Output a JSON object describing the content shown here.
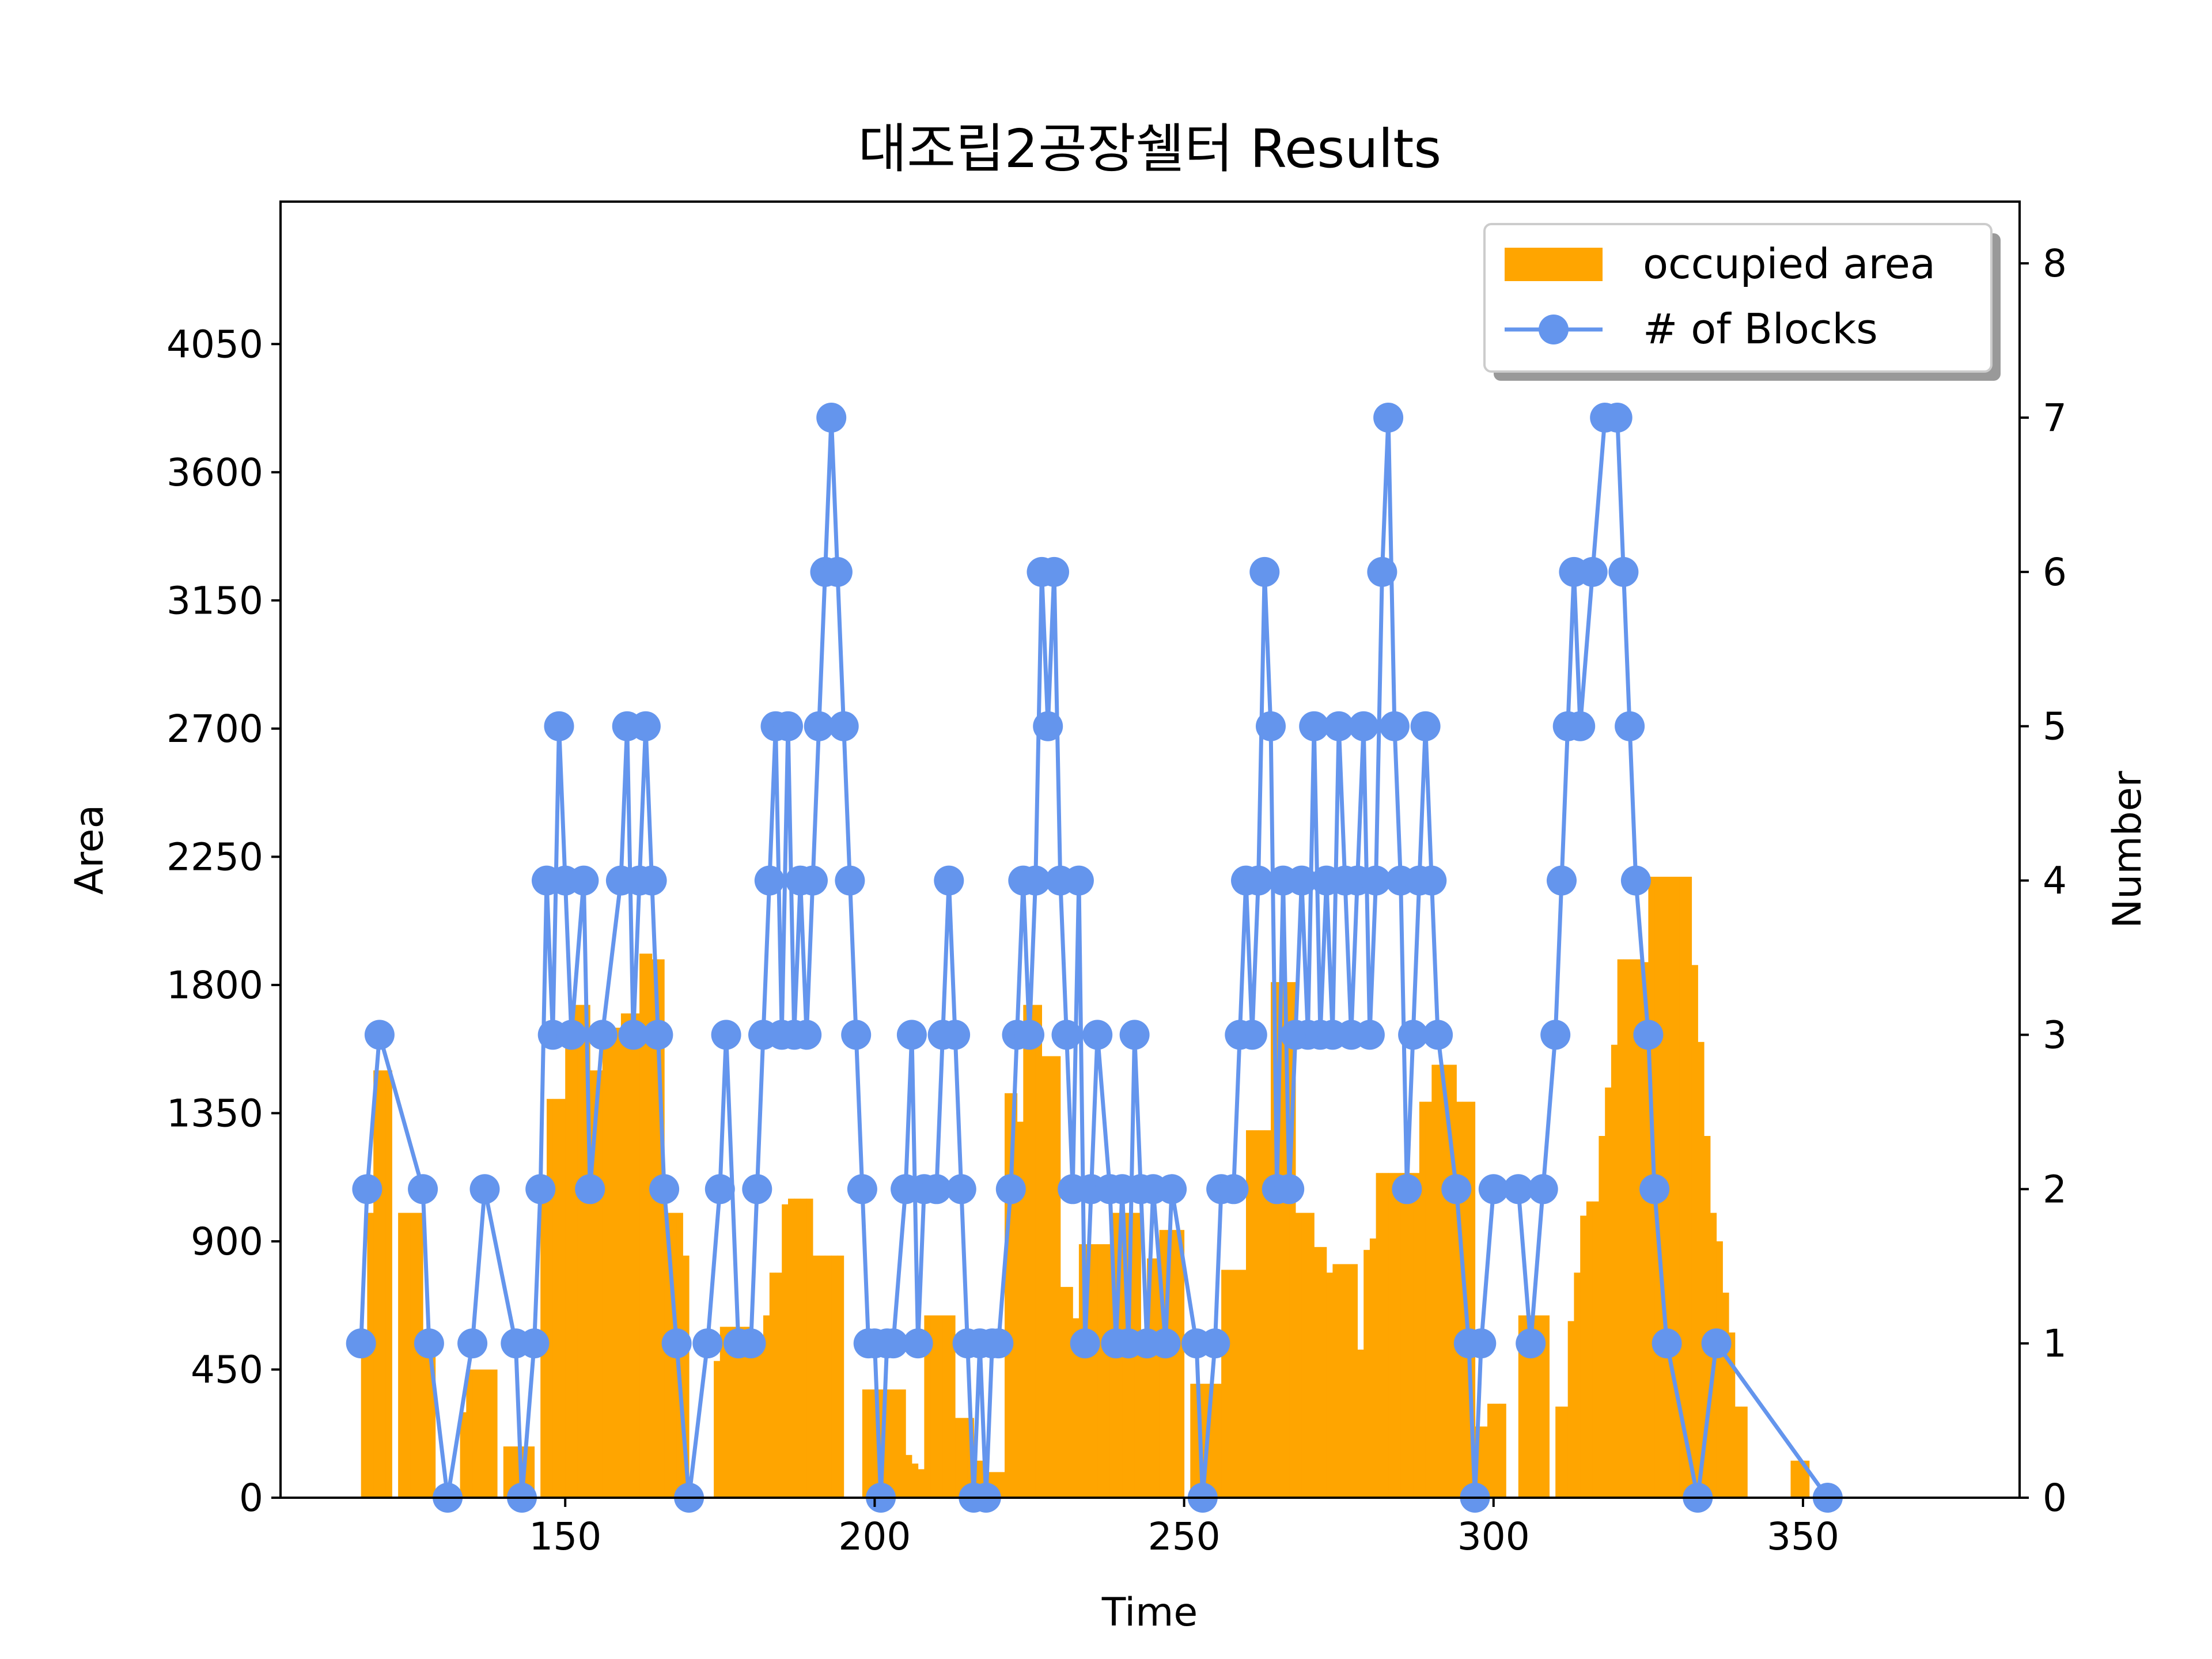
{
  "chart_data": {
    "type": "bar+line",
    "title": "대조립2공장쉘터 Results",
    "xlabel": "Time",
    "ylabel_left": "Area",
    "ylabel_right": "Number",
    "xlim": [
      104,
      385
    ],
    "ylim_left": [
      0,
      4550
    ],
    "ylim_right": [
      0,
      8.4
    ],
    "x_ticks": [
      150,
      200,
      250,
      300,
      350
    ],
    "y_left_ticks": [
      0,
      450,
      900,
      1350,
      1800,
      2250,
      2700,
      3150,
      3600,
      4050
    ],
    "y_right_ticks": [
      0,
      1,
      2,
      3,
      4,
      5,
      6,
      7,
      8
    ],
    "legend_position": "upper right",
    "colors": {
      "bar": "#FFA500",
      "line": "#6495ED"
    },
    "bar_series": {
      "name": "occupied area",
      "bars": [
        [
          117,
          500
        ],
        [
          118,
          1000
        ],
        [
          119,
          1500
        ],
        [
          120,
          1500
        ],
        [
          121,
          1500
        ],
        [
          123,
          1000
        ],
        [
          124,
          1000
        ],
        [
          125,
          1000
        ],
        [
          126,
          1000
        ],
        [
          127,
          500
        ],
        [
          128,
          500
        ],
        [
          133,
          300
        ],
        [
          134,
          450
        ],
        [
          135,
          450
        ],
        [
          136,
          450
        ],
        [
          137,
          450
        ],
        [
          138,
          450
        ],
        [
          140,
          180
        ],
        [
          141,
          180
        ],
        [
          142,
          180
        ],
        [
          143,
          180
        ],
        [
          144,
          180
        ],
        [
          146,
          1050
        ],
        [
          147,
          1400
        ],
        [
          148,
          1400
        ],
        [
          149,
          1400
        ],
        [
          150,
          1650
        ],
        [
          151,
          1730
        ],
        [
          152,
          1730
        ],
        [
          153,
          1730
        ],
        [
          154,
          1500
        ],
        [
          155,
          1500
        ],
        [
          156,
          1650
        ],
        [
          157,
          1650
        ],
        [
          158,
          1650
        ],
        [
          159,
          1700
        ],
        [
          160,
          1700
        ],
        [
          161,
          1700
        ],
        [
          162,
          1910
        ],
        [
          163,
          1910
        ],
        [
          164,
          1890
        ],
        [
          165,
          1890
        ],
        [
          166,
          1000
        ],
        [
          167,
          1000
        ],
        [
          168,
          1000
        ],
        [
          169,
          850
        ],
        [
          174,
          480
        ],
        [
          175,
          600
        ],
        [
          176,
          600
        ],
        [
          177,
          600
        ],
        [
          178,
          600
        ],
        [
          179,
          600
        ],
        [
          180,
          520
        ],
        [
          181,
          520
        ],
        [
          182,
          640
        ],
        [
          183,
          790
        ],
        [
          184,
          790
        ],
        [
          185,
          1030
        ],
        [
          186,
          1050
        ],
        [
          187,
          1050
        ],
        [
          188,
          1050
        ],
        [
          189,
          1050
        ],
        [
          190,
          850
        ],
        [
          191,
          850
        ],
        [
          192,
          850
        ],
        [
          193,
          850
        ],
        [
          194,
          850
        ],
        [
          198,
          380
        ],
        [
          199,
          380
        ],
        [
          200,
          380
        ],
        [
          201,
          380
        ],
        [
          202,
          380
        ],
        [
          203,
          380
        ],
        [
          204,
          380
        ],
        [
          205,
          150
        ],
        [
          206,
          120
        ],
        [
          207,
          100
        ],
        [
          208,
          640
        ],
        [
          209,
          640
        ],
        [
          210,
          640
        ],
        [
          211,
          640
        ],
        [
          212,
          640
        ],
        [
          213,
          280
        ],
        [
          214,
          280
        ],
        [
          215,
          280
        ],
        [
          216,
          130
        ],
        [
          217,
          130
        ],
        [
          218,
          90
        ],
        [
          219,
          90
        ],
        [
          220,
          90
        ],
        [
          221,
          1420
        ],
        [
          222,
          1420
        ],
        [
          223,
          1320
        ],
        [
          224,
          1730
        ],
        [
          225,
          1730
        ],
        [
          226,
          1730
        ],
        [
          227,
          1550
        ],
        [
          228,
          1550
        ],
        [
          229,
          1550
        ],
        [
          230,
          740
        ],
        [
          231,
          740
        ],
        [
          232,
          630
        ],
        [
          233,
          890
        ],
        [
          234,
          890
        ],
        [
          235,
          890
        ],
        [
          236,
          890
        ],
        [
          237,
          890
        ],
        [
          238,
          1000
        ],
        [
          239,
          1000
        ],
        [
          240,
          1000
        ],
        [
          241,
          1000
        ],
        [
          242,
          1000
        ],
        [
          243,
          590
        ],
        [
          244,
          840
        ],
        [
          245,
          840
        ],
        [
          246,
          940
        ],
        [
          247,
          940
        ],
        [
          248,
          940
        ],
        [
          249,
          940
        ],
        [
          251,
          400
        ],
        [
          252,
          400
        ],
        [
          253,
          400
        ],
        [
          254,
          400
        ],
        [
          255,
          400
        ],
        [
          256,
          800
        ],
        [
          257,
          800
        ],
        [
          258,
          800
        ],
        [
          259,
          800
        ],
        [
          260,
          1290
        ],
        [
          261,
          1290
        ],
        [
          262,
          1290
        ],
        [
          263,
          1290
        ],
        [
          264,
          1810
        ],
        [
          265,
          1810
        ],
        [
          266,
          1810
        ],
        [
          267,
          1810
        ],
        [
          268,
          1000
        ],
        [
          269,
          1000
        ],
        [
          270,
          1000
        ],
        [
          271,
          880
        ],
        [
          272,
          880
        ],
        [
          273,
          790
        ],
        [
          274,
          820
        ],
        [
          275,
          820
        ],
        [
          276,
          820
        ],
        [
          277,
          820
        ],
        [
          278,
          520
        ],
        [
          279,
          870
        ],
        [
          280,
          910
        ],
        [
          281,
          1140
        ],
        [
          282,
          1140
        ],
        [
          283,
          1140
        ],
        [
          284,
          1140
        ],
        [
          285,
          1140
        ],
        [
          286,
          1140
        ],
        [
          287,
          1140
        ],
        [
          288,
          1390
        ],
        [
          289,
          1390
        ],
        [
          290,
          1520
        ],
        [
          291,
          1520
        ],
        [
          292,
          1520
        ],
        [
          293,
          1520
        ],
        [
          294,
          1390
        ],
        [
          295,
          1390
        ],
        [
          296,
          1390
        ],
        [
          297,
          250
        ],
        [
          298,
          250
        ],
        [
          299,
          330
        ],
        [
          300,
          330
        ],
        [
          301,
          330
        ],
        [
          304,
          640
        ],
        [
          305,
          640
        ],
        [
          306,
          640
        ],
        [
          307,
          640
        ],
        [
          308,
          640
        ],
        [
          310,
          320
        ],
        [
          311,
          320
        ],
        [
          312,
          620
        ],
        [
          313,
          790
        ],
        [
          314,
          990
        ],
        [
          315,
          1040
        ],
        [
          316,
          1040
        ],
        [
          317,
          1270
        ],
        [
          318,
          1440
        ],
        [
          319,
          1590
        ],
        [
          320,
          1890
        ],
        [
          321,
          1890
        ],
        [
          322,
          1890
        ],
        [
          323,
          1890
        ],
        [
          324,
          1880
        ],
        [
          325,
          2180
        ],
        [
          326,
          2180
        ],
        [
          327,
          2180
        ],
        [
          328,
          2180
        ],
        [
          329,
          2180
        ],
        [
          330,
          2180
        ],
        [
          331,
          2180
        ],
        [
          332,
          1870
        ],
        [
          333,
          1600
        ],
        [
          334,
          1270
        ],
        [
          335,
          1000
        ],
        [
          336,
          900
        ],
        [
          337,
          720
        ],
        [
          338,
          580
        ],
        [
          339,
          320
        ],
        [
          340,
          320
        ],
        [
          348,
          130
        ],
        [
          349,
          130
        ],
        [
          350,
          130
        ]
      ]
    },
    "line_series": {
      "name": "# of Blocks",
      "points": [
        [
          117,
          1
        ],
        [
          118,
          2
        ],
        [
          120,
          3
        ],
        [
          127,
          2
        ],
        [
          128,
          1
        ],
        [
          131,
          0
        ],
        [
          135,
          1
        ],
        [
          137,
          2
        ],
        [
          142,
          1
        ],
        [
          143,
          0
        ],
        [
          145,
          1
        ],
        [
          146,
          2
        ],
        [
          147,
          4
        ],
        [
          148,
          3
        ],
        [
          149,
          5
        ],
        [
          150,
          4
        ],
        [
          151,
          3
        ],
        [
          153,
          4
        ],
        [
          154,
          2
        ],
        [
          156,
          3
        ],
        [
          159,
          4
        ],
        [
          160,
          5
        ],
        [
          161,
          3
        ],
        [
          162,
          4
        ],
        [
          163,
          5
        ],
        [
          164,
          4
        ],
        [
          165,
          3
        ],
        [
          166,
          2
        ],
        [
          168,
          1
        ],
        [
          170,
          0
        ],
        [
          173,
          1
        ],
        [
          175,
          2
        ],
        [
          176,
          3
        ],
        [
          178,
          1
        ],
        [
          180,
          1
        ],
        [
          181,
          2
        ],
        [
          182,
          3
        ],
        [
          183,
          4
        ],
        [
          184,
          5
        ],
        [
          185,
          3
        ],
        [
          186,
          5
        ],
        [
          187,
          3
        ],
        [
          188,
          4
        ],
        [
          189,
          3
        ],
        [
          190,
          4
        ],
        [
          191,
          5
        ],
        [
          192,
          6
        ],
        [
          193,
          7
        ],
        [
          194,
          6
        ],
        [
          195,
          5
        ],
        [
          196,
          4
        ],
        [
          197,
          3
        ],
        [
          198,
          2
        ],
        [
          199,
          1
        ],
        [
          200,
          1
        ],
        [
          201,
          0
        ],
        [
          202,
          1
        ],
        [
          203,
          1
        ],
        [
          205,
          2
        ],
        [
          206,
          3
        ],
        [
          207,
          1
        ],
        [
          208,
          2
        ],
        [
          210,
          2
        ],
        [
          211,
          3
        ],
        [
          212,
          4
        ],
        [
          213,
          3
        ],
        [
          214,
          2
        ],
        [
          215,
          1
        ],
        [
          216,
          0
        ],
        [
          217,
          1
        ],
        [
          218,
          0
        ],
        [
          219,
          1
        ],
        [
          220,
          1
        ],
        [
          222,
          2
        ],
        [
          223,
          3
        ],
        [
          224,
          4
        ],
        [
          225,
          3
        ],
        [
          226,
          4
        ],
        [
          227,
          6
        ],
        [
          228,
          5
        ],
        [
          229,
          6
        ],
        [
          230,
          4
        ],
        [
          231,
          3
        ],
        [
          232,
          2
        ],
        [
          233,
          4
        ],
        [
          234,
          1
        ],
        [
          235,
          2
        ],
        [
          236,
          3
        ],
        [
          238,
          2
        ],
        [
          239,
          1
        ],
        [
          240,
          2
        ],
        [
          241,
          1
        ],
        [
          242,
          3
        ],
        [
          243,
          2
        ],
        [
          244,
          1
        ],
        [
          245,
          2
        ],
        [
          247,
          1
        ],
        [
          248,
          2
        ],
        [
          252,
          1
        ],
        [
          253,
          0
        ],
        [
          255,
          1
        ],
        [
          256,
          2
        ],
        [
          258,
          2
        ],
        [
          259,
          3
        ],
        [
          260,
          4
        ],
        [
          261,
          3
        ],
        [
          262,
          4
        ],
        [
          263,
          6
        ],
        [
          264,
          5
        ],
        [
          265,
          2
        ],
        [
          266,
          4
        ],
        [
          267,
          2
        ],
        [
          268,
          3
        ],
        [
          269,
          4
        ],
        [
          270,
          3
        ],
        [
          271,
          5
        ],
        [
          272,
          3
        ],
        [
          273,
          4
        ],
        [
          274,
          3
        ],
        [
          275,
          5
        ],
        [
          276,
          4
        ],
        [
          277,
          3
        ],
        [
          278,
          4
        ],
        [
          279,
          5
        ],
        [
          280,
          3
        ],
        [
          281,
          4
        ],
        [
          282,
          6
        ],
        [
          283,
          7
        ],
        [
          284,
          5
        ],
        [
          285,
          4
        ],
        [
          286,
          2
        ],
        [
          287,
          3
        ],
        [
          288,
          4
        ],
        [
          289,
          5
        ],
        [
          290,
          4
        ],
        [
          291,
          3
        ],
        [
          294,
          2
        ],
        [
          296,
          1
        ],
        [
          297,
          0
        ],
        [
          298,
          1
        ],
        [
          300,
          2
        ],
        [
          304,
          2
        ],
        [
          306,
          1
        ],
        [
          308,
          2
        ],
        [
          310,
          3
        ],
        [
          311,
          4
        ],
        [
          312,
          5
        ],
        [
          313,
          6
        ],
        [
          314,
          5
        ],
        [
          316,
          6
        ],
        [
          318,
          7
        ],
        [
          320,
          7
        ],
        [
          321,
          6
        ],
        [
          322,
          5
        ],
        [
          323,
          4
        ],
        [
          325,
          3
        ],
        [
          326,
          2
        ],
        [
          328,
          1
        ],
        [
          333,
          0
        ],
        [
          336,
          1
        ],
        [
          354,
          0
        ]
      ]
    }
  }
}
